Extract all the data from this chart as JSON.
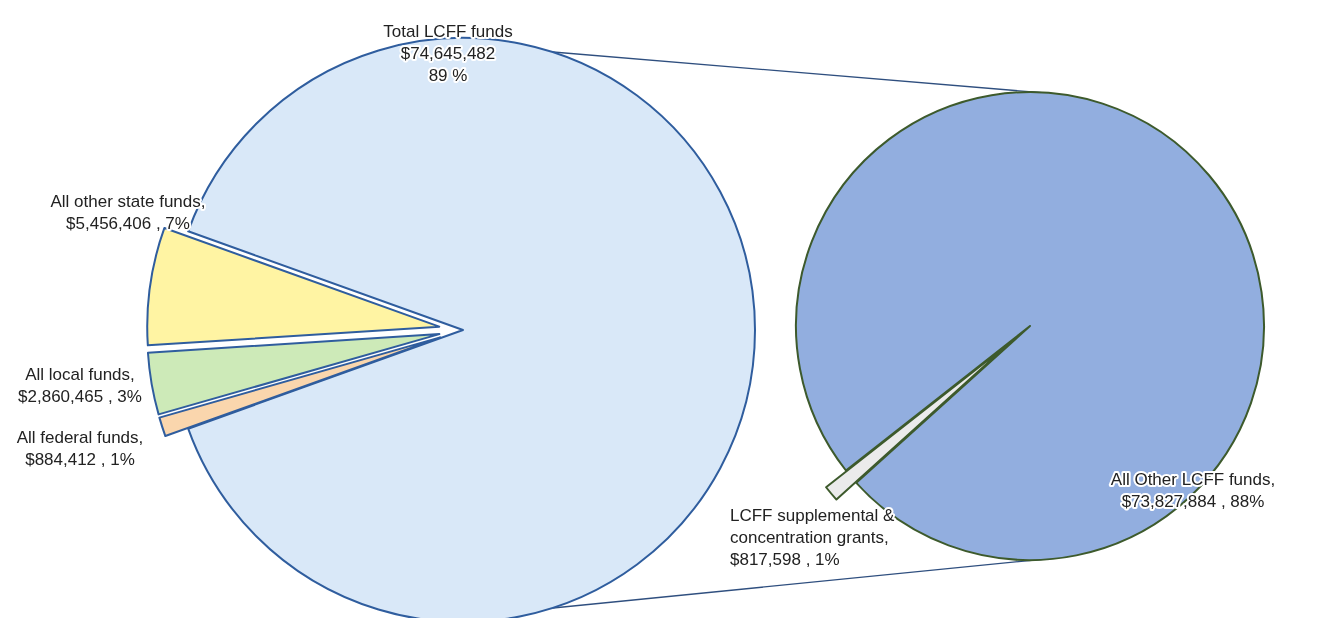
{
  "chart_data": [
    {
      "type": "pie",
      "categories": [
        "Total LCFF funds",
        "All federal funds",
        "All local funds",
        "All other state funds"
      ],
      "values": [
        74645482,
        884412,
        2860465,
        5456406
      ],
      "value_labels": [
        "\n$74,645,482\n89 %",
        ",\n$884,412 , 1%",
        ",\n$2,860,465 , 3%",
        ",\n$5,456,406 , 7%"
      ],
      "colors": [
        "#d9e8f8",
        "#fad6ad",
        "#cdeab8",
        "#fff4a3"
      ]
    },
    {
      "type": "pie",
      "categories": [
        "All Other LCFF funds",
        "LCFF supplemental & concentration grants"
      ],
      "values": [
        73827884,
        817598
      ],
      "value_labels": [
        ",\n$73,827,884 , 88%",
        ",\n$817,598 , 1%"
      ],
      "colors": [
        "#92aedf",
        "#ebebeb"
      ]
    }
  ]
}
